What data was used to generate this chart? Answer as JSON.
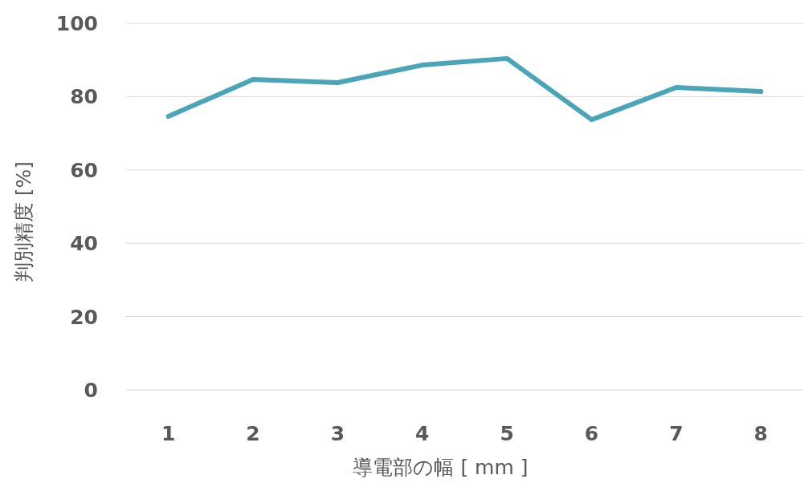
{
  "chart_data": {
    "type": "line",
    "xlabel": "導電部の幅 [ mm ]",
    "ylabel": "判別精度 [%]",
    "categories": [
      "1",
      "2",
      "3",
      "4",
      "5",
      "6",
      "7",
      "8"
    ],
    "series": [
      {
        "color": "#4ba5b8",
        "values": [
          74.6,
          84.7,
          83.8,
          88.6,
          90.4,
          73.7,
          82.5,
          81.4
        ]
      }
    ],
    "ylim": [
      0,
      100
    ],
    "yticks": [
      0,
      20,
      40,
      60,
      80,
      100
    ],
    "grid": "y",
    "marker": "none",
    "line_style": "solid"
  }
}
